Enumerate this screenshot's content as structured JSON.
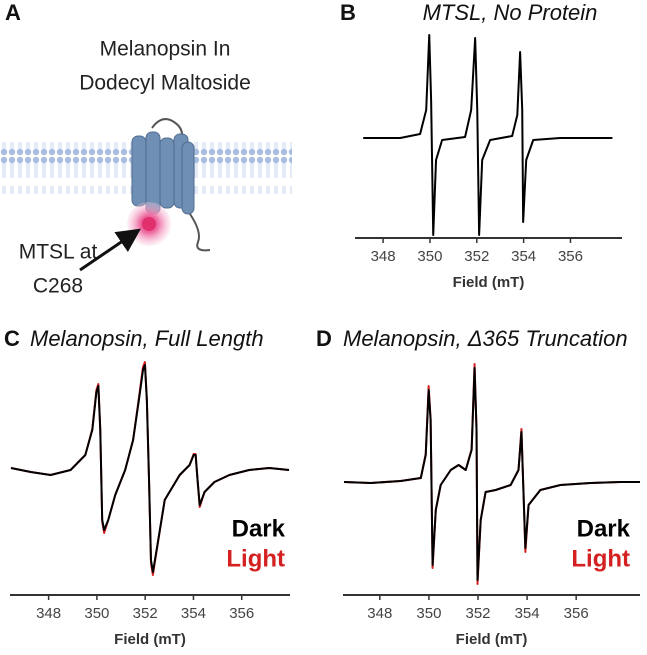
{
  "diagram": {
    "label": "A",
    "title_lines": [
      "Melanopsin In",
      "Dodecyl Maltoside"
    ],
    "annotation_lines": [
      "MTSL at",
      "C268"
    ]
  },
  "chart_data": [
    {
      "type": "line",
      "label": "B",
      "title": "MTSL, No Protein",
      "xlabel": "Field (mT)",
      "xlim": [
        346.8,
        358.2
      ],
      "xticks": [
        348,
        350,
        352,
        354,
        356
      ],
      "ylim": [
        -1.0,
        1.08
      ],
      "color": "#000000",
      "x": [
        347.15,
        348.73,
        349.58,
        349.84,
        349.97,
        350.05,
        350.14,
        350.26,
        350.52,
        351.5,
        351.76,
        351.93,
        352.02,
        352.1,
        352.23,
        352.57,
        353.51,
        353.73,
        353.85,
        353.94,
        353.98,
        354.11,
        354.41,
        355.56,
        357.79
      ],
      "values": [
        0,
        0,
        0.04,
        0.28,
        1.03,
        0.38,
        -0.97,
        -0.22,
        -0.02,
        0.01,
        0.28,
        1.0,
        0.28,
        -0.97,
        -0.22,
        -0.02,
        0.02,
        0.23,
        0.86,
        0.28,
        -0.84,
        -0.22,
        -0.02,
        0,
        0
      ]
    },
    {
      "type": "line",
      "label": "C",
      "title": "Melanopsin, Full Length",
      "xlabel": "Field (mT)",
      "xlim": [
        346.4,
        358.0
      ],
      "xticks": [
        348,
        350,
        352,
        354,
        356
      ],
      "ylim": [
        -1.25,
        1.3
      ],
      "x": [
        346.44,
        347.26,
        348.08,
        348.91,
        349.52,
        349.81,
        349.98,
        350.06,
        350.14,
        350.22,
        350.3,
        350.47,
        350.76,
        351.17,
        351.5,
        351.74,
        351.91,
        351.99,
        352.07,
        352.16,
        352.24,
        352.32,
        352.44,
        352.81,
        353.43,
        353.84,
        354.01,
        354.09,
        354.17,
        354.26,
        354.46,
        354.87,
        355.49,
        356.31,
        357.14,
        357.96
      ],
      "series": [
        {
          "name": "Light",
          "color": "#d42020",
          "values": [
            0.02,
            -0.02,
            -0.05,
            0,
            0.15,
            0.41,
            0.8,
            0.86,
            0.4,
            -0.52,
            -0.63,
            -0.5,
            -0.25,
            0,
            0.3,
            0.72,
            1.03,
            1.08,
            0.7,
            -0.1,
            -0.93,
            -1.05,
            -0.86,
            -0.3,
            -0.05,
            0.05,
            0.16,
            0.16,
            -0.1,
            -0.37,
            -0.22,
            -0.12,
            -0.05,
            0,
            0.02,
            0
          ]
        },
        {
          "name": "Dark",
          "color": "#000000",
          "values": [
            0.02,
            -0.02,
            -0.05,
            0,
            0.15,
            0.4,
            0.78,
            0.84,
            0.4,
            -0.5,
            -0.6,
            -0.5,
            -0.25,
            0,
            0.3,
            0.7,
            1.0,
            1.05,
            0.7,
            -0.1,
            -0.9,
            -1.02,
            -0.85,
            -0.3,
            -0.05,
            0.05,
            0.15,
            0.15,
            -0.1,
            -0.35,
            -0.22,
            -0.12,
            -0.05,
            0,
            0.02,
            0
          ]
        }
      ]
    },
    {
      "type": "line",
      "label": "D",
      "title": "Melanopsin, Δ365 Truncation",
      "xlabel": "Field (mT)",
      "xlim": [
        346.5,
        358.6
      ],
      "xticks": [
        348,
        350,
        352,
        354,
        356
      ],
      "ylim": [
        -1.13,
        1.42
      ],
      "x": [
        346.54,
        347.63,
        348.85,
        349.67,
        349.87,
        349.99,
        350.07,
        350.15,
        350.28,
        350.48,
        350.89,
        351.21,
        351.5,
        351.74,
        351.86,
        351.94,
        351.98,
        352.11,
        352.31,
        352.72,
        353.33,
        353.65,
        353.77,
        353.85,
        353.93,
        354.06,
        354.54,
        355.36,
        356.58,
        357.8,
        358.6
      ],
      "series": [
        {
          "name": "Light",
          "color": "#d42020",
          "values": [
            0,
            -0.01,
            0.01,
            0.04,
            0.28,
            0.96,
            0.62,
            -0.86,
            -0.28,
            -0.03,
            0.12,
            0.17,
            0.12,
            0.33,
            1.18,
            0.52,
            -1.02,
            -0.38,
            -0.1,
            -0.08,
            -0.03,
            0.12,
            0.53,
            -0.08,
            -0.7,
            -0.23,
            -0.08,
            -0.03,
            -0.01,
            0,
            0
          ]
        },
        {
          "name": "Dark",
          "color": "#000000",
          "values": [
            0,
            -0.01,
            0.01,
            0.04,
            0.27,
            0.92,
            0.62,
            -0.83,
            -0.28,
            -0.03,
            0.12,
            0.17,
            0.12,
            0.32,
            1.14,
            0.52,
            -0.98,
            -0.38,
            -0.1,
            -0.08,
            -0.03,
            0.12,
            0.5,
            -0.08,
            -0.66,
            -0.23,
            -0.08,
            -0.03,
            -0.01,
            0,
            0
          ]
        }
      ]
    }
  ]
}
